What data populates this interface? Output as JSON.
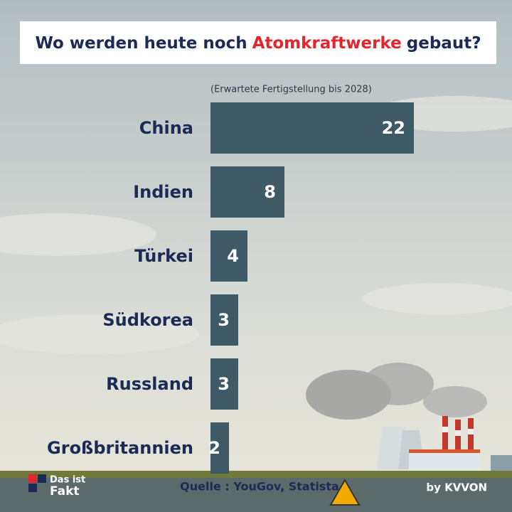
{
  "chart_data": {
    "type": "bar",
    "orientation": "horizontal",
    "title_parts": [
      "Wo werden heute noch",
      "Atomkraftwerke",
      "gebaut?"
    ],
    "title_colors": [
      "#1b2b55",
      "#e3262b",
      "#1b2b55"
    ],
    "subtitle": "(Erwartete Fertigstellung bis 2028)",
    "categories": [
      "China",
      "Indien",
      "Türkei",
      "Südkorea",
      "Russland",
      "Großbritannien"
    ],
    "values": [
      22,
      8,
      4,
      3,
      3,
      2
    ],
    "color": "#3d5a66",
    "source": "Quelle : YouGov, Statista",
    "logo": [
      "Das ist",
      "Fakt"
    ],
    "credit": "by KVVON"
  }
}
